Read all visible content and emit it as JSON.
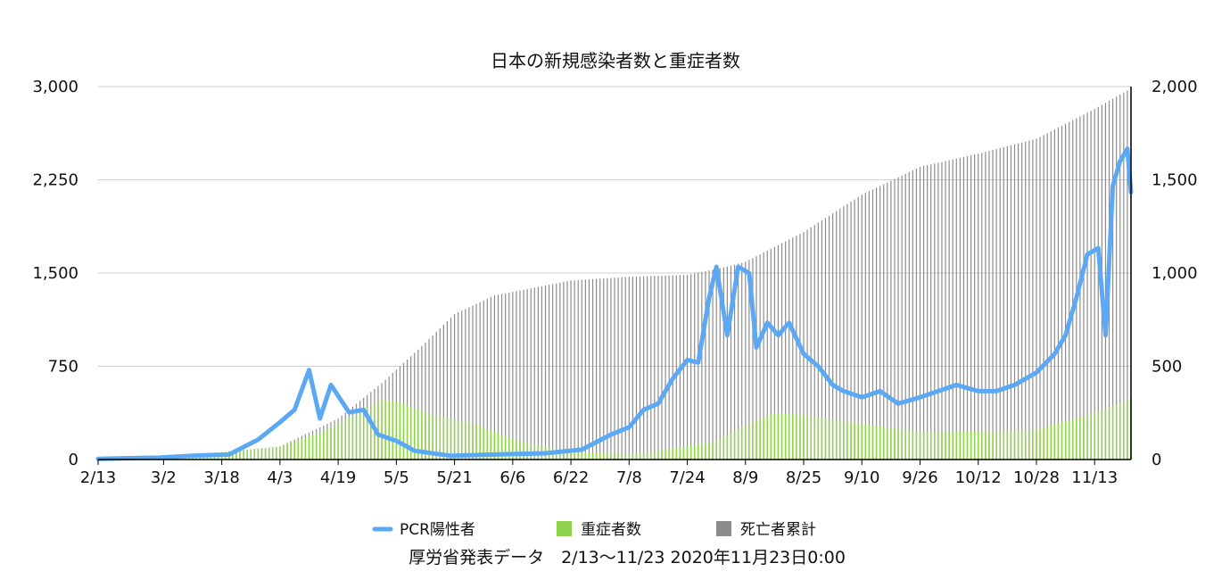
{
  "chart_data": {
    "type": "bar+line",
    "title": "日本の新規感染者数と重症者数",
    "caption": "厚労省発表データ　2/13〜11/23 2020年11月23日0:00",
    "x_tick_labels": [
      "2/13",
      "3/2",
      "3/18",
      "4/3",
      "4/19",
      "5/5",
      "5/21",
      "6/6",
      "6/22",
      "7/8",
      "7/24",
      "8/9",
      "8/25",
      "9/10",
      "9/26",
      "10/12",
      "10/28",
      "11/13"
    ],
    "left_axis": {
      "ticks": [
        "0",
        "750",
        "1,500",
        "2,250",
        "3,000"
      ],
      "min": 0,
      "max": 3000
    },
    "right_axis": {
      "ticks": [
        "0",
        "500",
        "1,000",
        "1,500",
        "2,000"
      ],
      "min": 0,
      "max": 2000
    },
    "legend": [
      {
        "name": "PCR陽性者",
        "color": "#5ba8f5"
      },
      {
        "name": "重症者数",
        "color": "#8fd24c"
      },
      {
        "name": "死亡者累計",
        "color": "#8c8c8c"
      }
    ],
    "grid": true,
    "x_start": "2/13",
    "x_end": "11/23",
    "series": [
      {
        "name": "PCR陽性者",
        "axis": "left",
        "type": "line",
        "color": "#5ba8f5",
        "points": [
          [
            "2/13",
            5
          ],
          [
            "2/20",
            10
          ],
          [
            "3/1",
            15
          ],
          [
            "3/10",
            30
          ],
          [
            "3/20",
            40
          ],
          [
            "3/28",
            160
          ],
          [
            "4/3",
            300
          ],
          [
            "4/7",
            400
          ],
          [
            "4/11",
            720
          ],
          [
            "4/14",
            330
          ],
          [
            "4/17",
            600
          ],
          [
            "4/22",
            380
          ],
          [
            "4/26",
            400
          ],
          [
            "4/30",
            200
          ],
          [
            "5/5",
            150
          ],
          [
            "5/10",
            70
          ],
          [
            "5/20",
            30
          ],
          [
            "6/1",
            40
          ],
          [
            "6/15",
            50
          ],
          [
            "6/25",
            80
          ],
          [
            "7/3",
            200
          ],
          [
            "7/8",
            260
          ],
          [
            "7/12",
            400
          ],
          [
            "7/16",
            450
          ],
          [
            "7/20",
            650
          ],
          [
            "7/24",
            800
          ],
          [
            "7/27",
            780
          ],
          [
            "7/30",
            1300
          ],
          [
            "8/1",
            1550
          ],
          [
            "8/4",
            1000
          ],
          [
            "8/7",
            1550
          ],
          [
            "8/10",
            1500
          ],
          [
            "8/12",
            900
          ],
          [
            "8/15",
            1100
          ],
          [
            "8/18",
            1000
          ],
          [
            "8/21",
            1100
          ],
          [
            "8/25",
            850
          ],
          [
            "8/29",
            750
          ],
          [
            "9/2",
            600
          ],
          [
            "9/5",
            550
          ],
          [
            "9/10",
            500
          ],
          [
            "9/15",
            550
          ],
          [
            "9/20",
            450
          ],
          [
            "9/26",
            500
          ],
          [
            "10/1",
            550
          ],
          [
            "10/6",
            600
          ],
          [
            "10/12",
            550
          ],
          [
            "10/17",
            550
          ],
          [
            "10/22",
            600
          ],
          [
            "10/28",
            700
          ],
          [
            "11/2",
            850
          ],
          [
            "11/5",
            1000
          ],
          [
            "11/8",
            1300
          ],
          [
            "11/11",
            1650
          ],
          [
            "11/14",
            1700
          ],
          [
            "11/16",
            1000
          ],
          [
            "11/18",
            2200
          ],
          [
            "11/20",
            2400
          ],
          [
            "11/22",
            2500
          ],
          [
            "11/23",
            2150
          ]
        ]
      },
      {
        "name": "重症者数",
        "axis": "right",
        "type": "bar",
        "color": "#8fd24c",
        "points": [
          [
            "2/13",
            5
          ],
          [
            "3/18",
            40
          ],
          [
            "4/3",
            70
          ],
          [
            "4/15",
            150
          ],
          [
            "4/25",
            260
          ],
          [
            "5/1",
            320
          ],
          [
            "5/5",
            310
          ],
          [
            "5/15",
            240
          ],
          [
            "5/25",
            200
          ],
          [
            "6/6",
            110
          ],
          [
            "6/22",
            40
          ],
          [
            "7/8",
            30
          ],
          [
            "7/24",
            70
          ],
          [
            "8/1",
            100
          ],
          [
            "8/9",
            190
          ],
          [
            "8/17",
            250
          ],
          [
            "8/25",
            240
          ],
          [
            "9/10",
            190
          ],
          [
            "9/26",
            150
          ],
          [
            "10/12",
            150
          ],
          [
            "10/28",
            160
          ],
          [
            "11/13",
            250
          ],
          [
            "11/23",
            330
          ]
        ]
      },
      {
        "name": "死亡者累計",
        "axis": "right",
        "type": "bar",
        "color": "#8c8c8c",
        "points": [
          [
            "2/13",
            0
          ],
          [
            "3/18",
            30
          ],
          [
            "4/3",
            70
          ],
          [
            "4/19",
            220
          ],
          [
            "5/1",
            410
          ],
          [
            "5/11",
            590
          ],
          [
            "5/21",
            780
          ],
          [
            "6/1",
            880
          ],
          [
            "6/22",
            960
          ],
          [
            "7/8",
            980
          ],
          [
            "7/24",
            990
          ],
          [
            "8/3",
            1030
          ],
          [
            "8/9",
            1060
          ],
          [
            "8/25",
            1220
          ],
          [
            "9/10",
            1420
          ],
          [
            "9/26",
            1570
          ],
          [
            "10/12",
            1640
          ],
          [
            "10/28",
            1720
          ],
          [
            "11/13",
            1880
          ],
          [
            "11/23",
            1990
          ]
        ]
      }
    ]
  }
}
